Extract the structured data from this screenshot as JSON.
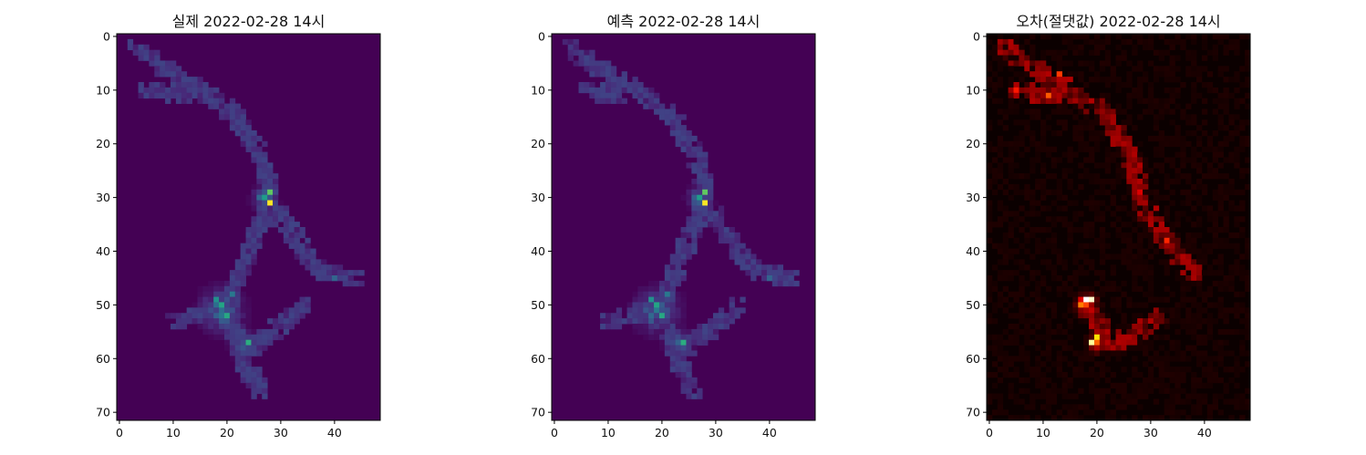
{
  "chart_data": [
    {
      "type": "heatmap",
      "title": "실제 2022-02-28 14시",
      "colormap": "viridis",
      "grid": false,
      "xlim": [
        -0.5,
        48.5
      ],
      "ylim": [
        71.5,
        -0.5
      ],
      "rows": 72,
      "cols": 49,
      "xticks": [
        0,
        10,
        20,
        30,
        40
      ],
      "yticks": [
        0,
        10,
        20,
        30,
        40,
        50,
        60,
        70
      ],
      "hotspots": [
        {
          "x": 28,
          "y": 31,
          "value": 1.0
        },
        {
          "x": 28,
          "y": 29,
          "value": 0.75
        },
        {
          "x": 27,
          "y": 30,
          "value": 0.55
        },
        {
          "x": 24,
          "y": 57,
          "value": 0.62
        },
        {
          "x": 19,
          "y": 50,
          "value": 0.58
        },
        {
          "x": 20,
          "y": 52,
          "value": 0.6
        },
        {
          "x": 18,
          "y": 49,
          "value": 0.5
        },
        {
          "x": 21,
          "y": 48,
          "value": 0.4
        },
        {
          "x": 40,
          "y": 45,
          "value": 0.32
        }
      ]
    },
    {
      "type": "heatmap",
      "title": "예측 2022-02-28 14시",
      "colormap": "viridis",
      "grid": false,
      "xlim": [
        -0.5,
        48.5
      ],
      "ylim": [
        71.5,
        -0.5
      ],
      "rows": 72,
      "cols": 49,
      "xticks": [
        0,
        10,
        20,
        30,
        40
      ],
      "yticks": [
        0,
        10,
        20,
        30,
        40,
        50,
        60,
        70
      ],
      "hotspots": [
        {
          "x": 28,
          "y": 31,
          "value": 1.0
        },
        {
          "x": 28,
          "y": 29,
          "value": 0.75
        },
        {
          "x": 27,
          "y": 30,
          "value": 0.55
        },
        {
          "x": 24,
          "y": 57,
          "value": 0.62
        },
        {
          "x": 19,
          "y": 50,
          "value": 0.58
        },
        {
          "x": 20,
          "y": 52,
          "value": 0.6
        },
        {
          "x": 18,
          "y": 49,
          "value": 0.5
        },
        {
          "x": 21,
          "y": 48,
          "value": 0.4
        },
        {
          "x": 40,
          "y": 45,
          "value": 0.32
        }
      ]
    },
    {
      "type": "heatmap",
      "title": "오차(절댓값) 2022-02-28 14시",
      "colormap": "hot",
      "grid": false,
      "xlim": [
        -0.5,
        48.5
      ],
      "ylim": [
        71.5,
        -0.5
      ],
      "rows": 72,
      "cols": 49,
      "xticks": [
        0,
        10,
        20,
        30,
        40
      ],
      "yticks": [
        0,
        10,
        20,
        30,
        40,
        50,
        60,
        70
      ],
      "hotspots": [
        {
          "x": 18,
          "y": 49,
          "value": 1.0
        },
        {
          "x": 19,
          "y": 49,
          "value": 0.95
        },
        {
          "x": 19,
          "y": 57,
          "value": 0.9
        },
        {
          "x": 20,
          "y": 56,
          "value": 0.7
        },
        {
          "x": 17,
          "y": 50,
          "value": 0.55
        },
        {
          "x": 11,
          "y": 11,
          "value": 0.5
        },
        {
          "x": 13,
          "y": 7,
          "value": 0.45
        },
        {
          "x": 5,
          "y": 10,
          "value": 0.4
        },
        {
          "x": 33,
          "y": 38,
          "value": 0.42
        },
        {
          "x": 28,
          "y": 29,
          "value": 0.3
        }
      ]
    }
  ]
}
